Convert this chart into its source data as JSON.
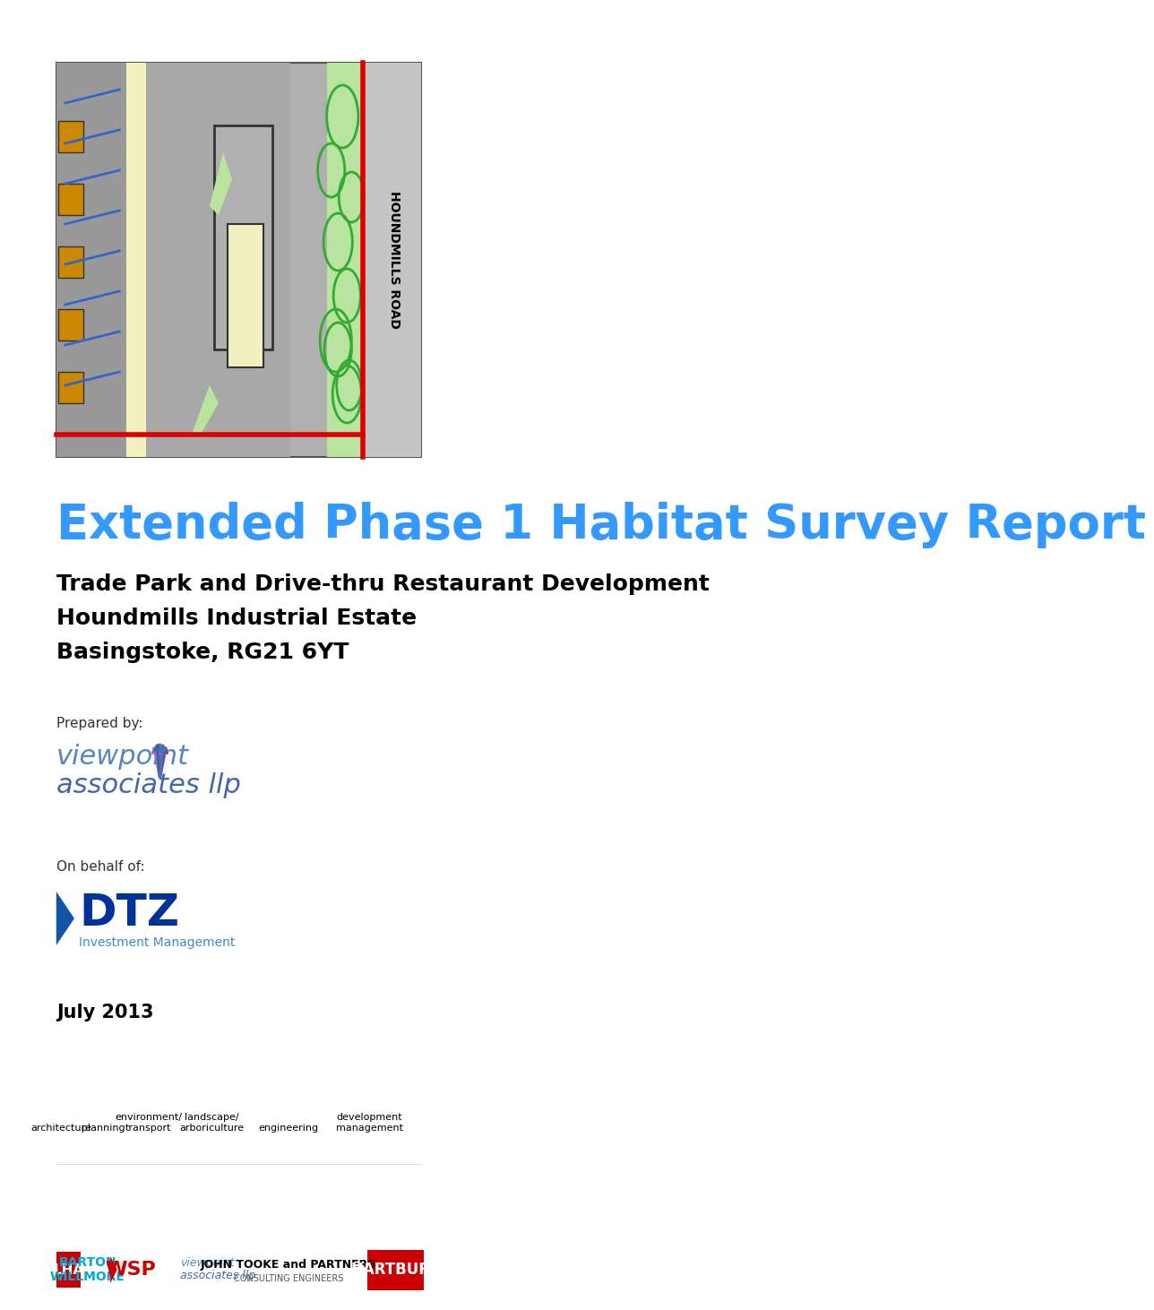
{
  "title": "Extended Phase 1 Habitat Survey Report",
  "subtitle_line1": "Trade Park and Drive-thru Restaurant Development",
  "subtitle_line2": "Houndmills Industrial Estate",
  "subtitle_line3": "Basingstoke, RG21 6YT",
  "prepared_by": "Prepared by:",
  "on_behalf": "On behalf of:",
  "date": "July 2013",
  "title_color": "#3399FF",
  "subtitle_color": "#000000",
  "background_color": "#FFFFFF",
  "page_bg": "#FFFFFF",
  "footer_labels": [
    "architecture",
    "planning",
    "environment/\ntransport",
    "landscape/\narboriculture",
    "engineering",
    "development\nmanagement"
  ],
  "footer_label_color": "#000000",
  "map_bg": "#C8C8C8",
  "lha_bg": "#CC0000",
  "hartbury_bg": "#CC0000",
  "hartbury_text": "HARTBURY",
  "hartbury_text_color": "#FFFFFF",
  "barton_willmore_color": "#00AADD",
  "wsp_color": "#CC0000",
  "john_tooke_text": "JOHN TOOKE and PARTNERS",
  "john_tooke_sub": "CONSULTING ENGINEERS"
}
